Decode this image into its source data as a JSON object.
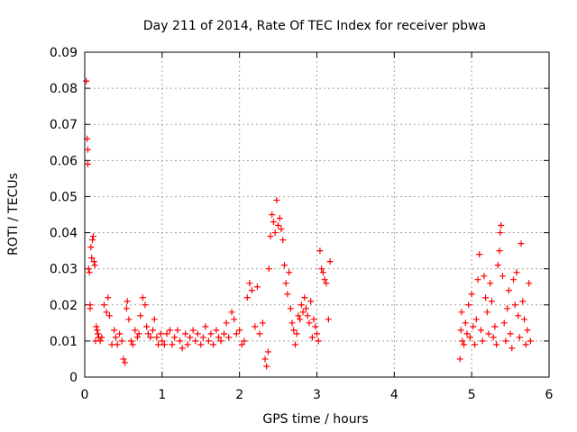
{
  "chart_data": {
    "type": "scatter",
    "title": "Day 211 of 2014, Rate Of TEC Index for receiver pbwa",
    "xlabel": "GPS time / hours",
    "ylabel": "ROTI / TECUs",
    "xlim": [
      0,
      6
    ],
    "ylim": [
      0,
      0.09
    ],
    "xticks": [
      0,
      1,
      2,
      3,
      4,
      5,
      6
    ],
    "xtick_labels": [
      "0",
      "1",
      "2",
      "3",
      "4",
      "5",
      "6"
    ],
    "yticks": [
      0,
      0.01,
      0.02,
      0.03,
      0.04,
      0.05,
      0.06,
      0.07,
      0.08,
      0.09
    ],
    "ytick_labels": [
      "0",
      "0.01",
      "0.02",
      "0.03",
      "0.04",
      "0.05",
      "0.06",
      "0.07",
      "0.08",
      "0.09"
    ],
    "grid": true,
    "marker": "+",
    "series": [
      {
        "name": "ROTI",
        "color": "#ff0000",
        "points": [
          [
            0.02,
            0.082
          ],
          [
            0.03,
            0.066
          ],
          [
            0.04,
            0.063
          ],
          [
            0.04,
            0.059
          ],
          [
            0.05,
            0.03
          ],
          [
            0.06,
            0.029
          ],
          [
            0.07,
            0.02
          ],
          [
            0.07,
            0.019
          ],
          [
            0.08,
            0.036
          ],
          [
            0.09,
            0.033
          ],
          [
            0.1,
            0.038
          ],
          [
            0.11,
            0.039
          ],
          [
            0.12,
            0.032
          ],
          [
            0.13,
            0.031
          ],
          [
            0.14,
            0.01
          ],
          [
            0.15,
            0.014
          ],
          [
            0.16,
            0.013
          ],
          [
            0.17,
            0.012
          ],
          [
            0.18,
            0.011
          ],
          [
            0.2,
            0.01
          ],
          [
            0.22,
            0.011
          ],
          [
            0.25,
            0.02
          ],
          [
            0.28,
            0.018
          ],
          [
            0.3,
            0.022
          ],
          [
            0.32,
            0.017
          ],
          [
            0.35,
            0.009
          ],
          [
            0.38,
            0.013
          ],
          [
            0.4,
            0.011
          ],
          [
            0.42,
            0.009
          ],
          [
            0.45,
            0.012
          ],
          [
            0.48,
            0.01
          ],
          [
            0.5,
            0.005
          ],
          [
            0.52,
            0.004
          ],
          [
            0.54,
            0.019
          ],
          [
            0.55,
            0.021
          ],
          [
            0.57,
            0.016
          ],
          [
            0.6,
            0.01
          ],
          [
            0.62,
            0.009
          ],
          [
            0.65,
            0.013
          ],
          [
            0.68,
            0.011
          ],
          [
            0.7,
            0.012
          ],
          [
            0.72,
            0.017
          ],
          [
            0.75,
            0.022
          ],
          [
            0.78,
            0.02
          ],
          [
            0.8,
            0.014
          ],
          [
            0.82,
            0.012
          ],
          [
            0.85,
            0.011
          ],
          [
            0.88,
            0.013
          ],
          [
            0.9,
            0.016
          ],
          [
            0.93,
            0.011
          ],
          [
            0.95,
            0.009
          ],
          [
            0.98,
            0.012
          ],
          [
            1.0,
            0.01
          ],
          [
            1.03,
            0.009
          ],
          [
            1.06,
            0.012
          ],
          [
            1.1,
            0.013
          ],
          [
            1.13,
            0.009
          ],
          [
            1.16,
            0.011
          ],
          [
            1.2,
            0.013
          ],
          [
            1.23,
            0.01
          ],
          [
            1.26,
            0.008
          ],
          [
            1.3,
            0.012
          ],
          [
            1.33,
            0.009
          ],
          [
            1.36,
            0.011
          ],
          [
            1.4,
            0.013
          ],
          [
            1.43,
            0.01
          ],
          [
            1.46,
            0.012
          ],
          [
            1.5,
            0.009
          ],
          [
            1.53,
            0.011
          ],
          [
            1.56,
            0.014
          ],
          [
            1.6,
            0.01
          ],
          [
            1.63,
            0.012
          ],
          [
            1.66,
            0.009
          ],
          [
            1.7,
            0.013
          ],
          [
            1.73,
            0.011
          ],
          [
            1.76,
            0.01
          ],
          [
            1.8,
            0.012
          ],
          [
            1.83,
            0.015
          ],
          [
            1.86,
            0.011
          ],
          [
            1.9,
            0.018
          ],
          [
            1.93,
            0.016
          ],
          [
            1.96,
            0.012
          ],
          [
            2.0,
            0.013
          ],
          [
            2.03,
            0.009
          ],
          [
            2.06,
            0.01
          ],
          [
            2.1,
            0.022
          ],
          [
            2.13,
            0.026
          ],
          [
            2.16,
            0.024
          ],
          [
            2.2,
            0.014
          ],
          [
            2.23,
            0.025
          ],
          [
            2.26,
            0.012
          ],
          [
            2.3,
            0.015
          ],
          [
            2.33,
            0.005
          ],
          [
            2.35,
            0.003
          ],
          [
            2.37,
            0.007
          ],
          [
            2.38,
            0.03
          ],
          [
            2.4,
            0.039
          ],
          [
            2.42,
            0.045
          ],
          [
            2.44,
            0.043
          ],
          [
            2.46,
            0.04
          ],
          [
            2.48,
            0.049
          ],
          [
            2.5,
            0.042
          ],
          [
            2.52,
            0.044
          ],
          [
            2.54,
            0.041
          ],
          [
            2.56,
            0.038
          ],
          [
            2.58,
            0.031
          ],
          [
            2.6,
            0.026
          ],
          [
            2.62,
            0.023
          ],
          [
            2.64,
            0.029
          ],
          [
            2.66,
            0.019
          ],
          [
            2.68,
            0.015
          ],
          [
            2.7,
            0.013
          ],
          [
            2.72,
            0.009
          ],
          [
            2.74,
            0.012
          ],
          [
            2.76,
            0.017
          ],
          [
            2.78,
            0.016
          ],
          [
            2.8,
            0.02
          ],
          [
            2.82,
            0.018
          ],
          [
            2.84,
            0.022
          ],
          [
            2.86,
            0.019
          ],
          [
            2.88,
            0.017
          ],
          [
            2.9,
            0.015
          ],
          [
            2.92,
            0.021
          ],
          [
            2.94,
            0.011
          ],
          [
            2.96,
            0.016
          ],
          [
            2.98,
            0.014
          ],
          [
            3.0,
            0.012
          ],
          [
            3.02,
            0.01
          ],
          [
            3.04,
            0.035
          ],
          [
            3.06,
            0.03
          ],
          [
            3.08,
            0.029
          ],
          [
            3.1,
            0.027
          ],
          [
            3.12,
            0.026
          ],
          [
            3.15,
            0.016
          ],
          [
            3.17,
            0.032
          ],
          [
            4.85,
            0.005
          ],
          [
            4.86,
            0.013
          ],
          [
            4.87,
            0.018
          ],
          [
            4.88,
            0.01
          ],
          [
            4.9,
            0.009
          ],
          [
            4.92,
            0.015
          ],
          [
            4.94,
            0.012
          ],
          [
            4.96,
            0.02
          ],
          [
            4.98,
            0.011
          ],
          [
            5.0,
            0.023
          ],
          [
            5.02,
            0.014
          ],
          [
            5.04,
            0.009
          ],
          [
            5.06,
            0.016
          ],
          [
            5.08,
            0.027
          ],
          [
            5.1,
            0.034
          ],
          [
            5.12,
            0.013
          ],
          [
            5.14,
            0.01
          ],
          [
            5.16,
            0.028
          ],
          [
            5.18,
            0.022
          ],
          [
            5.2,
            0.018
          ],
          [
            5.22,
            0.012
          ],
          [
            5.24,
            0.026
          ],
          [
            5.26,
            0.021
          ],
          [
            5.28,
            0.011
          ],
          [
            5.3,
            0.014
          ],
          [
            5.32,
            0.009
          ],
          [
            5.34,
            0.031
          ],
          [
            5.36,
            0.035
          ],
          [
            5.37,
            0.04
          ],
          [
            5.38,
            0.042
          ],
          [
            5.4,
            0.028
          ],
          [
            5.42,
            0.015
          ],
          [
            5.44,
            0.01
          ],
          [
            5.46,
            0.019
          ],
          [
            5.48,
            0.024
          ],
          [
            5.5,
            0.012
          ],
          [
            5.52,
            0.008
          ],
          [
            5.54,
            0.027
          ],
          [
            5.56,
            0.02
          ],
          [
            5.58,
            0.029
          ],
          [
            5.6,
            0.017
          ],
          [
            5.62,
            0.011
          ],
          [
            5.64,
            0.037
          ],
          [
            5.66,
            0.021
          ],
          [
            5.68,
            0.016
          ],
          [
            5.7,
            0.009
          ],
          [
            5.72,
            0.013
          ],
          [
            5.74,
            0.026
          ],
          [
            5.76,
            0.01
          ]
        ]
      }
    ]
  }
}
